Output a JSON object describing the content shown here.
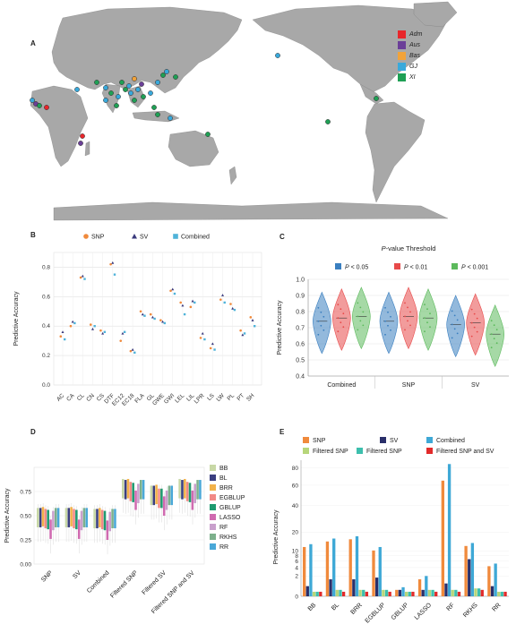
{
  "panels": {
    "a": "A",
    "b": "B",
    "c": "C",
    "d": "D",
    "e": "E"
  },
  "map_legend": {
    "items": [
      {
        "label": "Adm",
        "color": "#e8262b"
      },
      {
        "label": "Aus",
        "color": "#6b3f98"
      },
      {
        "label": "Bas",
        "color": "#f2a33a"
      },
      {
        "label": "GJ",
        "color": "#39a9db"
      },
      {
        "label": "XI",
        "color": "#1fa055"
      }
    ]
  },
  "chart_data": [
    {
      "id": "b",
      "type": "scatter",
      "title": "",
      "xlabel": "",
      "ylabel": "Predictive Accuracy",
      "ylim": [
        0,
        0.9
      ],
      "yticks": [
        "0.0",
        "0.2",
        "0.4",
        "0.6",
        "0.8"
      ],
      "grid": true,
      "legend": "top",
      "legend_shapes": [
        "●",
        "▲",
        "■"
      ],
      "categories": [
        "AC",
        "CA",
        "CL",
        "CN",
        "CS",
        "DTF",
        "EC12",
        "EC18",
        "FLA",
        "GL",
        "GWE",
        "GWI",
        "LEL",
        "LIL",
        "LPR",
        "LS",
        "LW",
        "PL",
        "PT",
        "SH"
      ],
      "series": [
        {
          "name": "SNP",
          "color": "#f08a3c",
          "values": [
            0.33,
            0.4,
            0.73,
            0.41,
            0.37,
            0.82,
            0.3,
            0.23,
            0.5,
            0.48,
            0.44,
            0.64,
            0.56,
            0.53,
            0.32,
            0.25,
            0.58,
            0.55,
            0.37,
            0.46
          ]
        },
        {
          "name": "SV",
          "color": "#3a3a7c",
          "values": [
            0.36,
            0.43,
            0.74,
            0.38,
            0.35,
            0.83,
            0.35,
            0.24,
            0.48,
            0.46,
            0.43,
            0.65,
            0.54,
            0.57,
            0.35,
            0.28,
            0.61,
            0.52,
            0.34,
            0.44
          ]
        },
        {
          "name": "Combined",
          "color": "#4fb3d9",
          "values": [
            0.31,
            0.42,
            0.72,
            0.4,
            0.36,
            0.75,
            0.36,
            0.22,
            0.47,
            0.45,
            0.42,
            0.62,
            0.48,
            0.56,
            0.31,
            0.24,
            0.56,
            0.51,
            0.35,
            0.4
          ]
        }
      ]
    },
    {
      "id": "c",
      "type": "violin",
      "title": "P-value Threshold",
      "title_italic_part": "P",
      "title_rest": "-value Threshold",
      "xlabel": "",
      "ylabel": "Predictive Accuracy",
      "ylim": [
        0.4,
        1.0
      ],
      "yticks": [
        "0.4",
        "0.5",
        "0.6",
        "0.7",
        "0.8",
        "0.9",
        "1.0"
      ],
      "legend": "top",
      "legend_stat": "P",
      "groups": [
        "Combined",
        "SNP",
        "SV"
      ],
      "series": [
        {
          "name": "< 0.05",
          "color": "#3a7fc0",
          "medians": [
            0.74,
            0.74,
            0.72
          ]
        },
        {
          "name": "< 0.01",
          "color": "#e84a4a",
          "medians": [
            0.76,
            0.77,
            0.73
          ]
        },
        {
          "name": "< 0.001",
          "color": "#5cba5c",
          "medians": [
            0.77,
            0.76,
            0.66
          ]
        }
      ]
    },
    {
      "id": "d",
      "type": "bar",
      "title": "",
      "xlabel": "",
      "ylabel": "Predictive Accuracy",
      "ylim": [
        0,
        1.0
      ],
      "yticks": [
        "0.00",
        "0.25",
        "0.50",
        "0.75"
      ],
      "legend": "right",
      "categories": [
        "SNP",
        "SV",
        "Combined",
        "Filtered SNP",
        "Filtered SV",
        "Filtered SNP and SV"
      ],
      "series": [
        {
          "name": "BB",
          "color": "#c8d8a6",
          "values": [
            0.54,
            0.54,
            0.53,
            0.84,
            0.77,
            0.84
          ]
        },
        {
          "name": "BL",
          "color": "#3b3f80",
          "values": [
            0.54,
            0.54,
            0.53,
            0.83,
            0.77,
            0.83
          ]
        },
        {
          "name": "BRR",
          "color": "#f2b24a",
          "values": [
            0.55,
            0.55,
            0.54,
            0.84,
            0.78,
            0.84
          ]
        },
        {
          "name": "EGBLUP",
          "color": "#f28a86",
          "values": [
            0.53,
            0.53,
            0.52,
            0.81,
            0.74,
            0.81
          ]
        },
        {
          "name": "GBLUP",
          "color": "#1f9b70",
          "values": [
            0.52,
            0.52,
            0.51,
            0.8,
            0.74,
            0.8
          ]
        },
        {
          "name": "LASSO",
          "color": "#d06ab0",
          "values": [
            0.42,
            0.42,
            0.41,
            0.72,
            0.66,
            0.72
          ]
        },
        {
          "name": "RF",
          "color": "#c9a0cc",
          "values": [
            0.51,
            0.51,
            0.5,
            0.79,
            0.72,
            0.79
          ]
        },
        {
          "name": "RKHS",
          "color": "#7db08c",
          "values": [
            0.54,
            0.54,
            0.53,
            0.83,
            0.77,
            0.83
          ]
        },
        {
          "name": "RR",
          "color": "#4aa8d8",
          "values": [
            0.54,
            0.54,
            0.53,
            0.83,
            0.77,
            0.83
          ]
        }
      ]
    },
    {
      "id": "e",
      "type": "bar",
      "title": "",
      "xlabel": "",
      "ylabel": "Predictive Accuracy",
      "yscale": "sqrt",
      "ylim": [
        0,
        90
      ],
      "yticks": [
        0,
        2,
        4,
        6,
        8,
        10,
        20,
        40,
        60,
        80
      ],
      "legend": "top",
      "categories": [
        "BB",
        "BL",
        "BRR",
        "EGBLUP",
        "GBLUP",
        "LASSO",
        "RF",
        "RKHS",
        "RR"
      ],
      "series": [
        {
          "name": "SNP",
          "color": "#f08a3c",
          "values": [
            11.8,
            14.6,
            15.8,
            10.2,
            0.2,
            1.4,
            65.0,
            12.3,
            4.4
          ]
        },
        {
          "name": "SV",
          "color": "#2a2f6a",
          "values": [
            0.5,
            1.4,
            1.4,
            1.7,
            0.2,
            0.2,
            0.8,
            6.7,
            0.5
          ]
        },
        {
          "name": "Combined",
          "color": "#3ea8d6",
          "values": [
            13.2,
            16.2,
            17.5,
            11.8,
            0.4,
            2.0,
            85.0,
            13.8,
            5.2
          ]
        },
        {
          "name": "Filtered SNP",
          "color": "#b7d67a",
          "values": [
            0.1,
            0.2,
            0.2,
            0.2,
            0.1,
            0.2,
            0.2,
            0.3,
            0.1
          ]
        },
        {
          "name": "Filtered SNP",
          "color": "#3dbfad",
          "values": [
            0.1,
            0.2,
            0.2,
            0.2,
            0.1,
            0.2,
            0.2,
            0.3,
            0.1
          ]
        },
        {
          "name": "Filtered SNP and SV",
          "color": "#e22a2a",
          "values": [
            0.1,
            0.1,
            0.1,
            0.1,
            0.1,
            0.1,
            0.1,
            0.2,
            0.1
          ]
        }
      ]
    }
  ]
}
